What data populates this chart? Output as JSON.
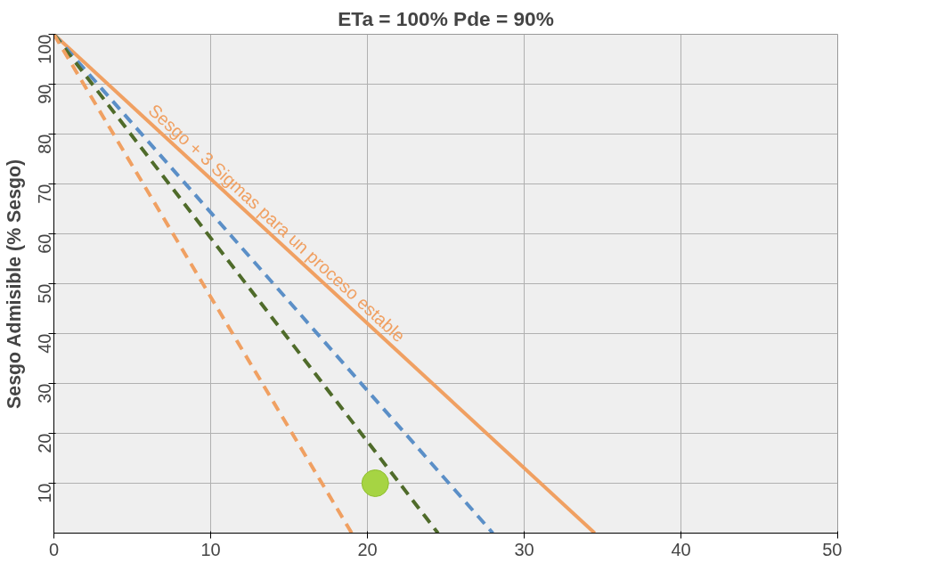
{
  "chart_data": {
    "type": "line",
    "title": "ETa = 100% Pde = 90%",
    "ylabel": "Sesgo Admisible (% Sesgo)",
    "series": [
      {
        "color": "#f0a062",
        "x": [
          0,
          34.5
        ],
        "values": [
          100,
          0
        ],
        "line_style": "solid"
      },
      {
        "color": "#5b8fc7",
        "x": [
          0,
          28
        ],
        "values": [
          100,
          0
        ],
        "line_style": "dashed"
      },
      {
        "color": "#4f6b2a",
        "x": [
          0,
          24.5
        ],
        "values": [
          100,
          0
        ],
        "line_style": "dashed"
      },
      {
        "color": "#f0a062",
        "x": [
          0,
          19
        ],
        "values": [
          100,
          0
        ],
        "line_style": "dashed"
      },
      {
        "type": "scatter",
        "color": "#a6d443",
        "x": [
          20.5
        ],
        "values": [
          10
        ],
        "marker": "circle"
      }
    ],
    "annotations": [
      "Sesgo + 3 Sigmas para un proceso estable"
    ],
    "xlim": [
      0,
      50
    ],
    "ylim": [
      0,
      100
    ],
    "xticks": [
      0,
      10,
      20,
      30,
      40,
      50
    ],
    "yticks": [
      10,
      20,
      30,
      40,
      50,
      60,
      70,
      80,
      90,
      100
    ],
    "grid": true
  }
}
